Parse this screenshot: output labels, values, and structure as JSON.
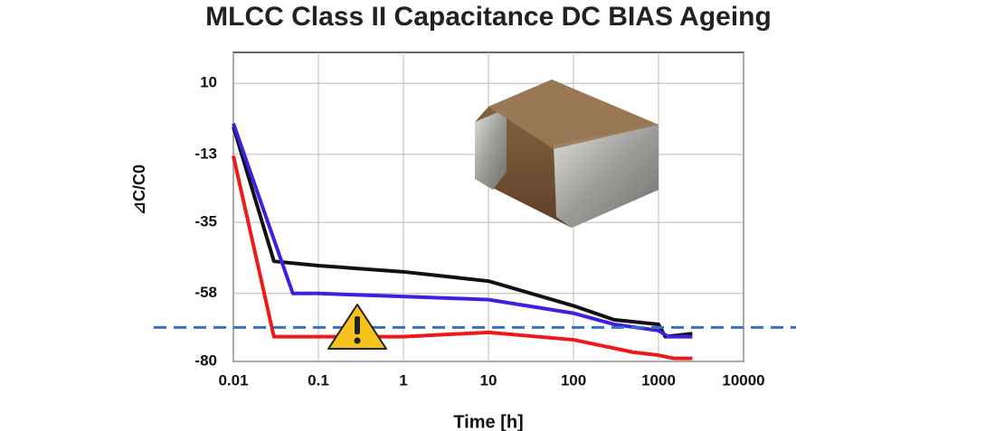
{
  "chart_data": {
    "type": "line",
    "title": "MLCC Class II Capacitance DC BIAS Ageing",
    "x_label": "Time [h]",
    "y_label": "⊿C/C0",
    "log_x": true,
    "grid": true,
    "xlim": [
      0.01,
      10000
    ],
    "xticks": [
      0.01,
      0.1,
      1,
      10,
      100,
      1000,
      10000
    ],
    "ylim": [
      -80,
      20
    ],
    "yticks": [
      10,
      -13,
      -35,
      -58,
      -80
    ],
    "reference_line": {
      "value": -69,
      "color": "#3a6fc4"
    },
    "series": [
      {
        "name": "black",
        "color": "#111111",
        "x": [
          0.01,
          0.03,
          0.1,
          1,
          10,
          100,
          300,
          1000,
          1200,
          2500
        ],
        "values": [
          -4,
          -47.6,
          -49,
          -51,
          -54,
          -62,
          -66.5,
          -68,
          -72,
          -71
        ]
      },
      {
        "name": "blue",
        "color": "#3b22e0",
        "x": [
          0.01,
          0.05,
          0.1,
          1,
          10,
          100,
          300,
          1000,
          1300,
          2500
        ],
        "values": [
          -3,
          -58,
          -58,
          -59,
          -60,
          -64.4,
          -68,
          -70,
          -72,
          -72
        ]
      },
      {
        "name": "red",
        "color": "#f01818",
        "x": [
          0.01,
          0.03,
          0.1,
          1,
          10,
          100,
          500,
          1000,
          1500,
          2500
        ],
        "values": [
          -13.5,
          -72,
          -72,
          -72,
          -70.6,
          -73,
          -77,
          -78,
          -79,
          -79
        ]
      }
    ]
  }
}
